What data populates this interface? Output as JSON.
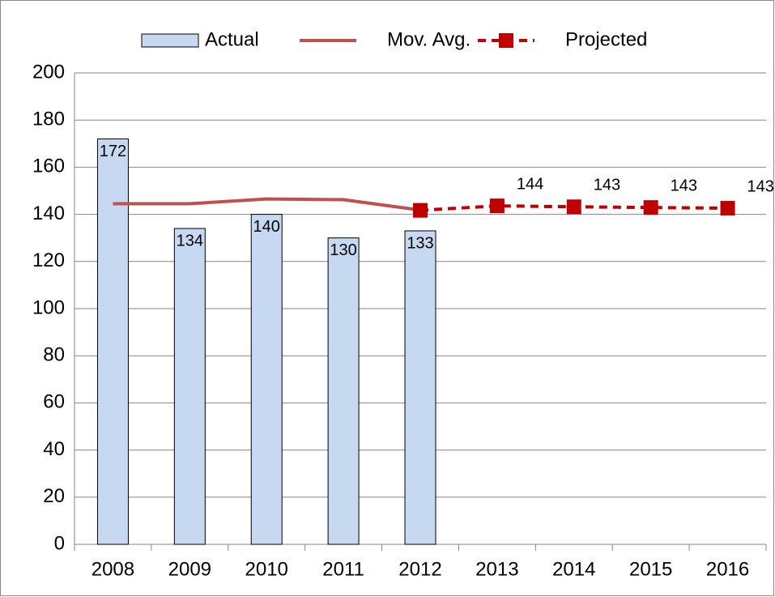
{
  "chart_data": {
    "type": "bar",
    "categories": [
      "2008",
      "2009",
      "2010",
      "2011",
      "2012",
      "2013",
      "2014",
      "2015",
      "2016"
    ],
    "series": [
      {
        "name": "Actual",
        "type": "bar",
        "color": "#c6d9f1",
        "values": [
          172,
          134,
          140,
          130,
          133,
          null,
          null,
          null,
          null
        ]
      },
      {
        "name": "Mov. Avg.",
        "type": "line",
        "color": "#c0504d",
        "values": [
          144.5,
          144.5,
          146.5,
          146.2,
          141.8,
          null,
          null,
          null,
          null
        ]
      },
      {
        "name": "Projected",
        "type": "line",
        "color": "#c00000",
        "dashed": true,
        "marker": "square",
        "values": [
          null,
          null,
          null,
          null,
          141.7,
          143.6,
          143.2,
          142.9,
          142.6
        ],
        "value_labels": [
          null,
          null,
          null,
          null,
          null,
          "144",
          "143",
          "143",
          "143"
        ]
      }
    ],
    "ylim": [
      0,
      200
    ],
    "yticks": [
      0,
      20,
      40,
      60,
      80,
      100,
      120,
      140,
      160,
      180,
      200
    ],
    "grid": true,
    "legend": "top"
  }
}
